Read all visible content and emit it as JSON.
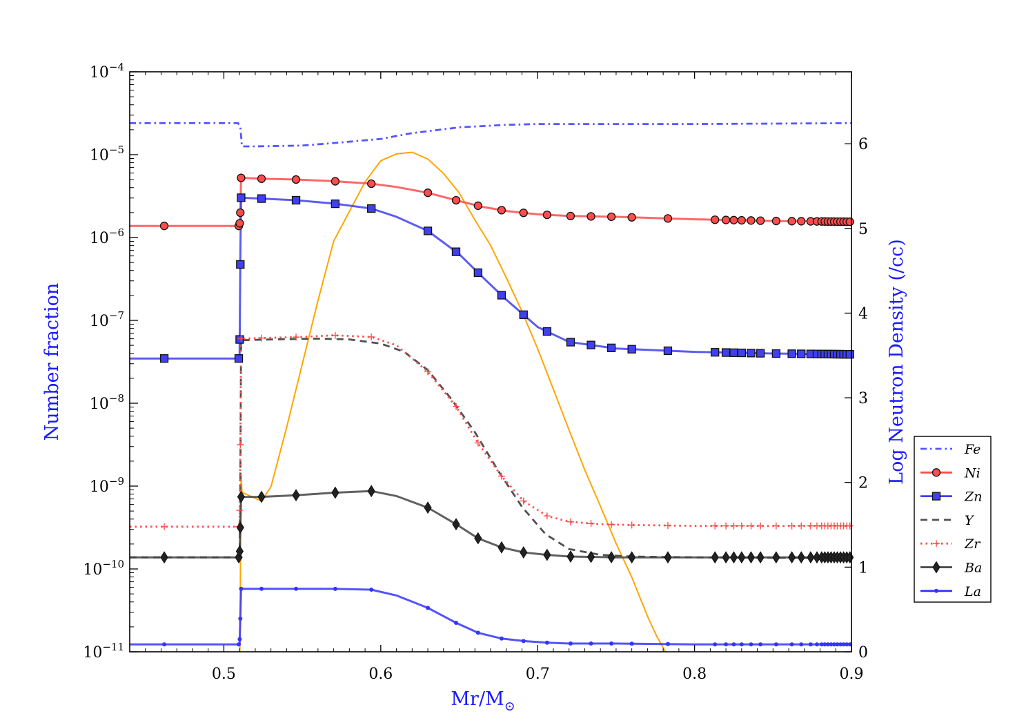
{
  "chart_data": {
    "type": "line",
    "title": "",
    "xlabel": "Mr/M",
    "xlabel_sub": "⊙",
    "ylabel": "Number fraction",
    "ylabel_right": "Log Neutron Density (/cc)",
    "xlim": [
      0.44,
      0.9
    ],
    "ylim_log10": [
      -11,
      -4
    ],
    "ylim_right": [
      0,
      6.85
    ],
    "x_ticks": [
      0.5,
      0.6,
      0.7,
      0.8,
      0.9
    ],
    "x_tick_labels": [
      "0.5",
      "0.6",
      "0.7",
      "0.8",
      "0.9"
    ],
    "y_tick_base": "10",
    "y_tick_exponents": [
      "−4",
      "−5",
      "−6",
      "−7",
      "−8",
      "−9",
      "−10",
      "−11"
    ],
    "y_tick_values": [
      -4,
      -5,
      -6,
      -7,
      -8,
      -9,
      -10,
      -11
    ],
    "y_right_ticks": [
      "0",
      "1",
      "2",
      "3",
      "4",
      "5",
      "6"
    ],
    "legend": {
      "position": "right",
      "entries": [
        "Fe",
        "Ni",
        "Zn",
        "Y",
        "Zr",
        "Ba",
        "La"
      ]
    },
    "colors": {
      "Fe": "#5555ff",
      "Ni": "#ff4c4c",
      "Zn": "#4040f0",
      "Y": "#505050",
      "Zr": "#ff4c4c",
      "Ba": "#444444",
      "La": "#3434ff",
      "neutron": "#ffa500",
      "axis_label": "#1a1aff"
    },
    "series": [
      {
        "name": "Fe",
        "style": "dashdot",
        "marker": "none",
        "x": [
          0.44,
          0.509,
          0.5105,
          0.5115,
          0.52,
          0.55,
          0.57,
          0.6,
          0.62,
          0.65,
          0.68,
          0.7,
          0.8,
          0.9
        ],
        "log_y": [
          -4.62,
          -4.62,
          -4.66,
          -4.9,
          -4.9,
          -4.89,
          -4.86,
          -4.81,
          -4.74,
          -4.67,
          -4.64,
          -4.63,
          -4.63,
          -4.62
        ]
      },
      {
        "name": "Ni",
        "style": "solid",
        "marker": "circle",
        "x": [
          0.44,
          0.51,
          0.5105,
          0.511,
          0.524,
          0.546,
          0.57,
          0.594,
          0.61,
          0.63,
          0.65,
          0.665,
          0.68,
          0.7,
          0.72,
          0.75,
          0.8,
          0.85,
          0.9
        ],
        "log_y": [
          -5.86,
          -5.86,
          -5.7,
          -5.28,
          -5.29,
          -5.3,
          -5.32,
          -5.35,
          -5.39,
          -5.46,
          -5.56,
          -5.63,
          -5.68,
          -5.72,
          -5.74,
          -5.75,
          -5.78,
          -5.8,
          -5.81
        ],
        "marker_x": [
          0.462,
          0.5095,
          0.5101,
          0.5105,
          0.511,
          0.524,
          0.546,
          0.571,
          0.594,
          0.63,
          0.648,
          0.662,
          0.677,
          0.691,
          0.706,
          0.721,
          0.734,
          0.747,
          0.76,
          0.783,
          0.813,
          0.82,
          0.825,
          0.83,
          0.836,
          0.842,
          0.852,
          0.862,
          0.868,
          0.874,
          0.878,
          0.881,
          0.883,
          0.885,
          0.887,
          0.889,
          0.891,
          0.893,
          0.895,
          0.897,
          0.899
        ]
      },
      {
        "name": "Zn",
        "style": "solid",
        "marker": "square",
        "x": [
          0.44,
          0.51,
          0.5102,
          0.5106,
          0.511,
          0.524,
          0.546,
          0.57,
          0.594,
          0.61,
          0.63,
          0.65,
          0.665,
          0.68,
          0.7,
          0.72,
          0.75,
          0.8,
          0.85,
          0.9
        ],
        "log_y": [
          -7.46,
          -7.46,
          -7.0,
          -6.1,
          -5.52,
          -5.53,
          -5.55,
          -5.59,
          -5.65,
          -5.75,
          -5.92,
          -6.2,
          -6.48,
          -6.75,
          -7.08,
          -7.26,
          -7.34,
          -7.38,
          -7.4,
          -7.41
        ],
        "marker_x": [
          0.462,
          0.5095,
          0.5101,
          0.5105,
          0.511,
          0.524,
          0.546,
          0.571,
          0.594,
          0.63,
          0.648,
          0.662,
          0.677,
          0.691,
          0.706,
          0.721,
          0.734,
          0.747,
          0.76,
          0.783,
          0.813,
          0.82,
          0.825,
          0.83,
          0.836,
          0.842,
          0.852,
          0.862,
          0.868,
          0.874,
          0.878,
          0.881,
          0.883,
          0.885,
          0.887,
          0.889,
          0.891,
          0.893,
          0.895,
          0.897,
          0.899
        ]
      },
      {
        "name": "Y",
        "style": "dashed",
        "marker": "none",
        "x": [
          0.44,
          0.51,
          0.5105,
          0.511,
          0.53,
          0.56,
          0.58,
          0.6,
          0.615,
          0.63,
          0.645,
          0.66,
          0.675,
          0.69,
          0.705,
          0.72,
          0.74,
          0.76,
          0.8,
          0.9
        ],
        "log_y": [
          -9.86,
          -9.86,
          -9.0,
          -7.24,
          -7.23,
          -7.22,
          -7.23,
          -7.28,
          -7.38,
          -7.6,
          -7.95,
          -8.35,
          -8.82,
          -9.25,
          -9.58,
          -9.76,
          -9.83,
          -9.85,
          -9.86,
          -9.87
        ]
      },
      {
        "name": "Zr",
        "style": "dotted",
        "marker": "plus",
        "x": [
          0.44,
          0.51,
          0.5105,
          0.511,
          0.53,
          0.55,
          0.57,
          0.594,
          0.61,
          0.63,
          0.648,
          0.662,
          0.677,
          0.691,
          0.706,
          0.72,
          0.74,
          0.76,
          0.8,
          0.9
        ],
        "log_y": [
          -9.49,
          -9.49,
          -8.5,
          -7.22,
          -7.21,
          -7.2,
          -7.18,
          -7.2,
          -7.3,
          -7.62,
          -8.04,
          -8.48,
          -8.88,
          -9.18,
          -9.36,
          -9.43,
          -9.46,
          -9.47,
          -9.48,
          -9.48
        ],
        "marker_x": [
          0.462,
          0.5095,
          0.5101,
          0.5105,
          0.511,
          0.524,
          0.546,
          0.571,
          0.594,
          0.63,
          0.648,
          0.662,
          0.677,
          0.691,
          0.706,
          0.721,
          0.734,
          0.747,
          0.76,
          0.783,
          0.813,
          0.82,
          0.825,
          0.83,
          0.836,
          0.842,
          0.852,
          0.862,
          0.868,
          0.874,
          0.878,
          0.881,
          0.883,
          0.885,
          0.887,
          0.889,
          0.891,
          0.893,
          0.895,
          0.897,
          0.899
        ]
      },
      {
        "name": "Ba",
        "style": "solid",
        "marker": "diamond",
        "x": [
          0.44,
          0.51,
          0.5105,
          0.511,
          0.524,
          0.546,
          0.57,
          0.594,
          0.61,
          0.63,
          0.648,
          0.662,
          0.677,
          0.691,
          0.706,
          0.72,
          0.75,
          0.8,
          0.85,
          0.9
        ],
        "log_y": [
          -9.86,
          -9.86,
          -9.5,
          -9.13,
          -9.13,
          -9.11,
          -9.08,
          -9.06,
          -9.12,
          -9.26,
          -9.46,
          -9.63,
          -9.74,
          -9.8,
          -9.83,
          -9.85,
          -9.86,
          -9.86,
          -9.86,
          -9.86
        ],
        "marker_x": [
          0.462,
          0.5095,
          0.5101,
          0.5105,
          0.511,
          0.524,
          0.546,
          0.571,
          0.594,
          0.63,
          0.648,
          0.662,
          0.677,
          0.691,
          0.706,
          0.721,
          0.734,
          0.747,
          0.76,
          0.783,
          0.813,
          0.82,
          0.825,
          0.83,
          0.836,
          0.842,
          0.852,
          0.862,
          0.868,
          0.874,
          0.878,
          0.881,
          0.883,
          0.885,
          0.887,
          0.889,
          0.891,
          0.893,
          0.895,
          0.897,
          0.899
        ]
      },
      {
        "name": "La",
        "style": "solid",
        "marker": "dot",
        "x": [
          0.44,
          0.51,
          0.5105,
          0.511,
          0.524,
          0.546,
          0.57,
          0.594,
          0.61,
          0.63,
          0.648,
          0.662,
          0.677,
          0.691,
          0.706,
          0.72,
          0.75,
          0.8,
          0.85,
          0.9
        ],
        "log_y": [
          -10.91,
          -10.91,
          -10.6,
          -10.24,
          -10.24,
          -10.24,
          -10.24,
          -10.25,
          -10.32,
          -10.47,
          -10.65,
          -10.77,
          -10.84,
          -10.87,
          -10.89,
          -10.9,
          -10.9,
          -10.91,
          -10.91,
          -10.91
        ],
        "marker_x": [
          0.462,
          0.5095,
          0.5101,
          0.5105,
          0.511,
          0.524,
          0.546,
          0.571,
          0.594,
          0.63,
          0.648,
          0.662,
          0.677,
          0.691,
          0.706,
          0.721,
          0.734,
          0.747,
          0.76,
          0.783,
          0.813,
          0.82,
          0.825,
          0.83,
          0.836,
          0.842,
          0.852,
          0.862,
          0.868,
          0.874,
          0.878,
          0.881,
          0.883,
          0.885,
          0.887,
          0.889,
          0.891,
          0.893,
          0.895,
          0.897,
          0.899
        ]
      }
    ],
    "neutron_density": {
      "axis": "right",
      "color": "#ffa500",
      "x": [
        0.5102,
        0.5106,
        0.511,
        0.5115,
        0.512,
        0.518,
        0.524,
        0.53,
        0.54,
        0.55,
        0.56,
        0.57,
        0.58,
        0.59,
        0.6,
        0.61,
        0.62,
        0.63,
        0.64,
        0.65,
        0.66,
        0.67,
        0.68,
        0.69,
        0.7,
        0.71,
        0.72,
        0.73,
        0.74,
        0.75,
        0.76,
        0.77,
        0.776,
        0.7815
      ],
      "y": [
        0.0,
        1.0,
        2.1,
        1.9,
        1.88,
        1.83,
        1.78,
        1.95,
        2.65,
        3.4,
        4.15,
        4.85,
        5.2,
        5.55,
        5.8,
        5.88,
        5.9,
        5.82,
        5.65,
        5.42,
        5.1,
        4.8,
        4.42,
        4.02,
        3.58,
        3.1,
        2.62,
        2.15,
        1.72,
        1.28,
        0.88,
        0.42,
        0.18,
        0.0
      ]
    }
  }
}
